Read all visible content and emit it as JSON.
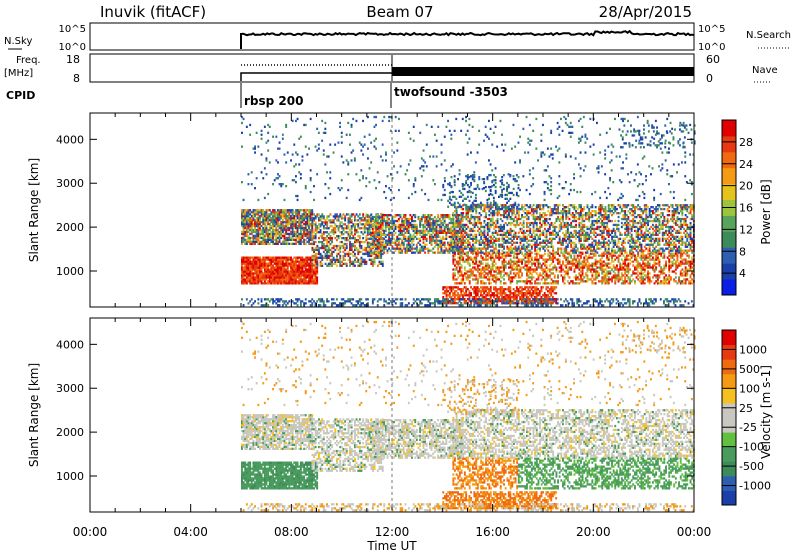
{
  "header": {
    "station": "Inuvik (fitACF)",
    "beam": "Beam 07",
    "date": "28/Apr/2015"
  },
  "panels": {
    "nsky": {
      "left_label": "N.Sky",
      "left_ticks": [
        "10^5",
        "10^0"
      ],
      "right_ticks": [
        "10^5",
        "10^0"
      ],
      "right_label": "N.Search"
    },
    "freq": {
      "left_label_1": "Freq.",
      "left_label_2": "[MHz]",
      "left_ticks": [
        "18",
        "8"
      ],
      "right_ticks": [
        "60",
        "0"
      ],
      "right_label": "Nave"
    },
    "cpid": {
      "label": "CPID",
      "entries": [
        {
          "name": "rbsp 200",
          "start_hour": 6.0
        },
        {
          "name": "twofsound -3503",
          "start_hour": 12.0
        }
      ]
    }
  },
  "chart_data": [
    {
      "type": "heatmap",
      "name": "power",
      "ylabel": "Slant Range [km]",
      "yticks": [
        1000,
        2000,
        3000,
        4000
      ],
      "ylim": [
        180,
        4600
      ],
      "xlim": [
        0,
        24
      ],
      "colorbar_label": "Power [dB]",
      "colorbar_ticks": [
        "28",
        "24",
        "20",
        "16",
        "12",
        "8",
        "4"
      ],
      "colorbar_colors": [
        "#0a1ee6",
        "#1a3fa8",
        "#2d5fb0",
        "#3d8a5a",
        "#57a45a",
        "#9cc43c",
        "#e8c21c",
        "#f59a14",
        "#f06a10",
        "#e83a10",
        "#e00000"
      ],
      "data_start_hour": 6.0
    },
    {
      "type": "heatmap",
      "name": "velocity",
      "ylabel": "Slant Range [km]",
      "yticks": [
        1000,
        2000,
        3000,
        4000
      ],
      "ylim": [
        180,
        4600
      ],
      "xlim": [
        0,
        24
      ],
      "colorbar_label": "Velocity [m s-1]",
      "colorbar_ticks": [
        "1000",
        "500",
        "100",
        "25",
        "-25",
        "-100",
        "-500",
        "-1000"
      ],
      "colorbar_colors": [
        "#1a3fa8",
        "#2d5fb0",
        "#3d8a5a",
        "#4a9b5e",
        "#62c040",
        "#c8c8c0",
        "#c8c8c0",
        "#f5c020",
        "#f59a14",
        "#f06a10",
        "#e83a10",
        "#e00000"
      ],
      "xlabel": "Time UT",
      "xticks": [
        "00:00",
        "04:00",
        "08:00",
        "12:00",
        "16:00",
        "20:00",
        "00:00"
      ],
      "data_start_hour": 6.0
    }
  ]
}
